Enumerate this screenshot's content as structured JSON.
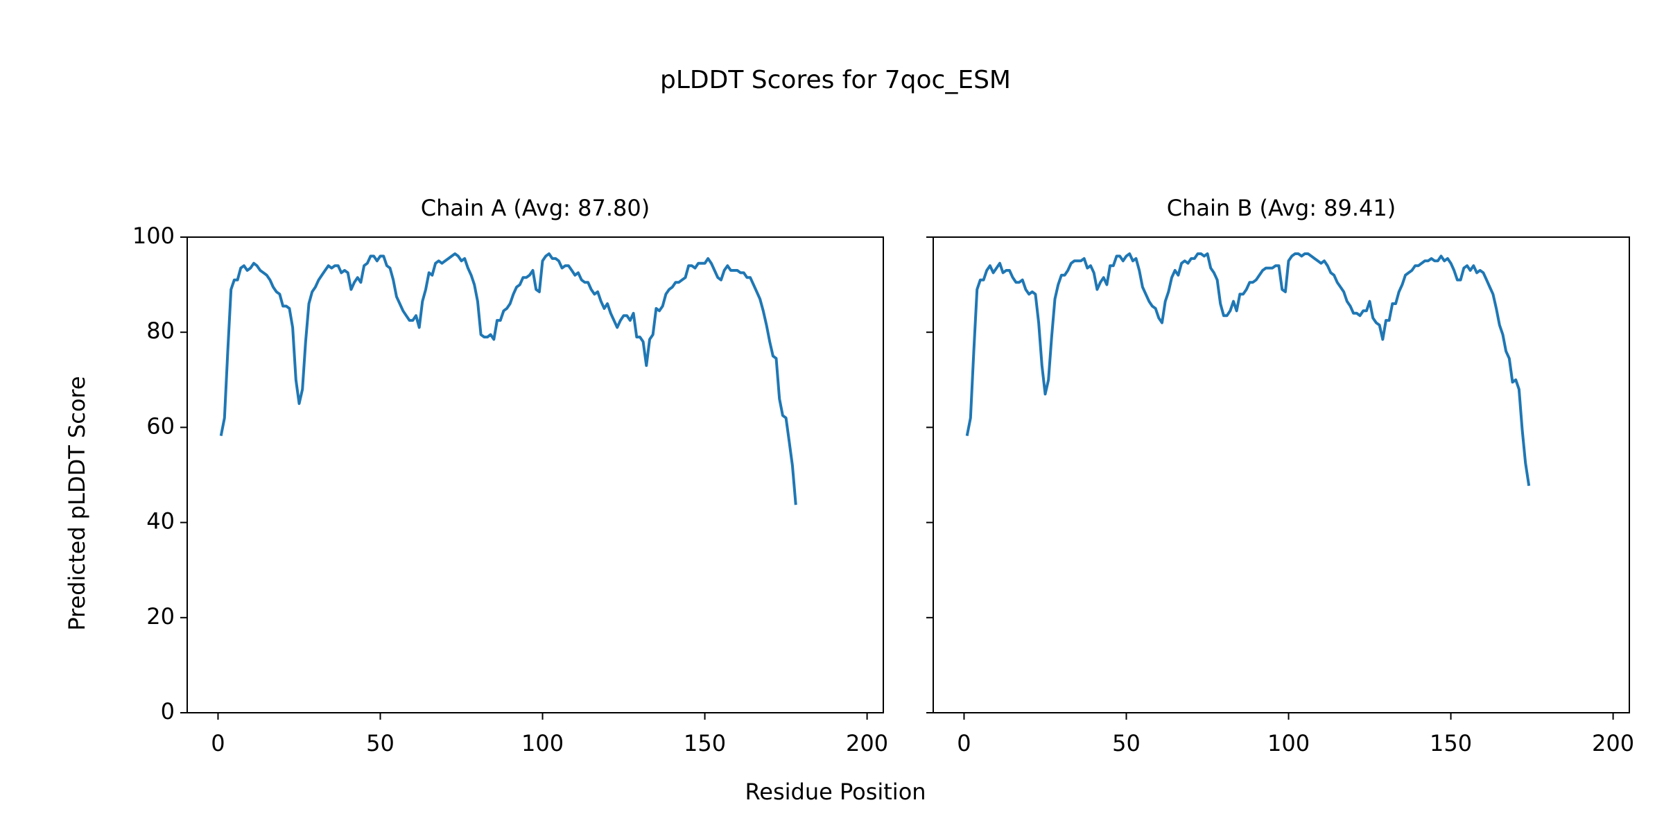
{
  "figure": {
    "suptitle": "pLDDT Scores for 7qoc_ESM",
    "xlabel": "Residue Position",
    "ylabel": "Predicted pLDDT Score"
  },
  "chart_data": [
    {
      "type": "line",
      "title": "Chain A (Avg: 87.80)",
      "xlim": [
        -9.5,
        205
      ],
      "ylim": [
        0,
        100
      ],
      "xticks": [
        0,
        50,
        100,
        150,
        200
      ],
      "yticks": [
        0,
        20,
        40,
        60,
        80,
        100
      ],
      "color": "#1f77b4",
      "grid": false,
      "points": [
        [
          1,
          58.5
        ],
        [
          2,
          62
        ],
        [
          3,
          76
        ],
        [
          4,
          89
        ],
        [
          5,
          91
        ],
        [
          6,
          91
        ],
        [
          7,
          93.5
        ],
        [
          8,
          94
        ],
        [
          9,
          93
        ],
        [
          10,
          93.5
        ],
        [
          11,
          94.5
        ],
        [
          12,
          94
        ],
        [
          13,
          93
        ],
        [
          14,
          92.5
        ],
        [
          15,
          92
        ],
        [
          16,
          91
        ],
        [
          17,
          89.5
        ],
        [
          18,
          88.5
        ],
        [
          19,
          88
        ],
        [
          20,
          85.5
        ],
        [
          21,
          85.5
        ],
        [
          22,
          85
        ],
        [
          23,
          81
        ],
        [
          24,
          70
        ],
        [
          25,
          65
        ],
        [
          26,
          68
        ],
        [
          27,
          78
        ],
        [
          28,
          86
        ],
        [
          29,
          88.5
        ],
        [
          30,
          89.5
        ],
        [
          31,
          91
        ],
        [
          32,
          92
        ],
        [
          33,
          93
        ],
        [
          34,
          94
        ],
        [
          35,
          93.5
        ],
        [
          36,
          94
        ],
        [
          37,
          94
        ],
        [
          38,
          92.5
        ],
        [
          39,
          93
        ],
        [
          40,
          92.5
        ],
        [
          41,
          89
        ],
        [
          42,
          90.5
        ],
        [
          43,
          91.5
        ],
        [
          44,
          90.5
        ],
        [
          45,
          94
        ],
        [
          46,
          94.5
        ],
        [
          47,
          96
        ],
        [
          48,
          96
        ],
        [
          49,
          95
        ],
        [
          50,
          96
        ],
        [
          51,
          96
        ],
        [
          52,
          94
        ],
        [
          53,
          93.5
        ],
        [
          54,
          91
        ],
        [
          55,
          87.5
        ],
        [
          56,
          86
        ],
        [
          57,
          84.5
        ],
        [
          58,
          83.5
        ],
        [
          59,
          82.5
        ],
        [
          60,
          82.5
        ],
        [
          61,
          83.5
        ],
        [
          62,
          81
        ],
        [
          63,
          86.5
        ],
        [
          64,
          89
        ],
        [
          65,
          92.5
        ],
        [
          66,
          92
        ],
        [
          67,
          94.5
        ],
        [
          68,
          95
        ],
        [
          69,
          94.5
        ],
        [
          70,
          95
        ],
        [
          71,
          95.5
        ],
        [
          72,
          96
        ],
        [
          73,
          96.5
        ],
        [
          74,
          96
        ],
        [
          75,
          95
        ],
        [
          76,
          95.5
        ],
        [
          77,
          93.5
        ],
        [
          78,
          92
        ],
        [
          79,
          90
        ],
        [
          80,
          86.5
        ],
        [
          81,
          79.5
        ],
        [
          82,
          79
        ],
        [
          83,
          79
        ],
        [
          84,
          79.5
        ],
        [
          85,
          78.5
        ],
        [
          86,
          82.5
        ],
        [
          87,
          82.5
        ],
        [
          88,
          84.5
        ],
        [
          89,
          85
        ],
        [
          90,
          86
        ],
        [
          91,
          88
        ],
        [
          92,
          89.5
        ],
        [
          93,
          90
        ],
        [
          94,
          91.5
        ],
        [
          95,
          91.5
        ],
        [
          96,
          92
        ],
        [
          97,
          93
        ],
        [
          98,
          89
        ],
        [
          99,
          88.5
        ],
        [
          100,
          95
        ],
        [
          101,
          96
        ],
        [
          102,
          96.5
        ],
        [
          103,
          95.5
        ],
        [
          104,
          95.5
        ],
        [
          105,
          95
        ],
        [
          106,
          93.5
        ],
        [
          107,
          94
        ],
        [
          108,
          94
        ],
        [
          109,
          93
        ],
        [
          110,
          92
        ],
        [
          111,
          92.5
        ],
        [
          112,
          91
        ],
        [
          113,
          90.5
        ],
        [
          114,
          90.5
        ],
        [
          115,
          89
        ],
        [
          116,
          88
        ],
        [
          117,
          88.5
        ],
        [
          118,
          86.5
        ],
        [
          119,
          85
        ],
        [
          120,
          86
        ],
        [
          121,
          84
        ],
        [
          122,
          82.5
        ],
        [
          123,
          81
        ],
        [
          124,
          82.5
        ],
        [
          125,
          83.5
        ],
        [
          126,
          83.5
        ],
        [
          127,
          82.5
        ],
        [
          128,
          84
        ],
        [
          129,
          79
        ],
        [
          130,
          79
        ],
        [
          131,
          78
        ],
        [
          132,
          73
        ],
        [
          133,
          78.5
        ],
        [
          134,
          79.5
        ],
        [
          135,
          85
        ],
        [
          136,
          84.5
        ],
        [
          137,
          85.5
        ],
        [
          138,
          88
        ],
        [
          139,
          89
        ],
        [
          140,
          89.5
        ],
        [
          141,
          90.5
        ],
        [
          142,
          90.5
        ],
        [
          143,
          91
        ],
        [
          144,
          91.5
        ],
        [
          145,
          94
        ],
        [
          146,
          94
        ],
        [
          147,
          93.5
        ],
        [
          148,
          94.5
        ],
        [
          149,
          94.5
        ],
        [
          150,
          94.5
        ],
        [
          151,
          95.5
        ],
        [
          152,
          94.5
        ],
        [
          153,
          93
        ],
        [
          154,
          91.5
        ],
        [
          155,
          91
        ],
        [
          156,
          93
        ],
        [
          157,
          94
        ],
        [
          158,
          93
        ],
        [
          159,
          93
        ],
        [
          160,
          93
        ],
        [
          161,
          92.5
        ],
        [
          162,
          92.5
        ],
        [
          163,
          91.5
        ],
        [
          164,
          91.5
        ],
        [
          165,
          90
        ],
        [
          166,
          88.5
        ],
        [
          167,
          87
        ],
        [
          168,
          84.5
        ],
        [
          169,
          81.5
        ],
        [
          170,
          78
        ],
        [
          171,
          75
        ],
        [
          172,
          74.5
        ],
        [
          173,
          66
        ],
        [
          174,
          62.5
        ],
        [
          175,
          62
        ],
        [
          176,
          57
        ],
        [
          177,
          52
        ],
        [
          178,
          44
        ]
      ]
    },
    {
      "type": "line",
      "title": "Chain B (Avg: 89.41)",
      "xlim": [
        -9.5,
        205
      ],
      "ylim": [
        0,
        100
      ],
      "xticks": [
        0,
        50,
        100,
        150,
        200
      ],
      "yticks": [
        0,
        20,
        40,
        60,
        80,
        100
      ],
      "color": "#1f77b4",
      "grid": false,
      "points": [
        [
          1,
          58.5
        ],
        [
          2,
          62
        ],
        [
          3,
          76
        ],
        [
          4,
          89
        ],
        [
          5,
          91
        ],
        [
          6,
          91
        ],
        [
          7,
          93
        ],
        [
          8,
          94
        ],
        [
          9,
          92.5
        ],
        [
          10,
          93.5
        ],
        [
          11,
          94.5
        ],
        [
          12,
          92.5
        ],
        [
          13,
          93
        ],
        [
          14,
          93
        ],
        [
          15,
          91.5
        ],
        [
          16,
          90.5
        ],
        [
          17,
          90.5
        ],
        [
          18,
          91
        ],
        [
          19,
          89
        ],
        [
          20,
          88
        ],
        [
          21,
          88.5
        ],
        [
          22,
          88
        ],
        [
          23,
          82
        ],
        [
          24,
          73
        ],
        [
          25,
          67
        ],
        [
          26,
          70
        ],
        [
          27,
          79
        ],
        [
          28,
          87
        ],
        [
          29,
          90
        ],
        [
          30,
          92
        ],
        [
          31,
          92
        ],
        [
          32,
          93
        ],
        [
          33,
          94.5
        ],
        [
          34,
          95
        ],
        [
          35,
          95
        ],
        [
          36,
          95
        ],
        [
          37,
          95.5
        ],
        [
          38,
          93.5
        ],
        [
          39,
          94
        ],
        [
          40,
          92.5
        ],
        [
          41,
          89
        ],
        [
          42,
          90.5
        ],
        [
          43,
          91.5
        ],
        [
          44,
          90
        ],
        [
          45,
          94
        ],
        [
          46,
          94
        ],
        [
          47,
          96
        ],
        [
          48,
          96
        ],
        [
          49,
          95
        ],
        [
          50,
          96
        ],
        [
          51,
          96.5
        ],
        [
          52,
          95
        ],
        [
          53,
          95.5
        ],
        [
          54,
          93
        ],
        [
          55,
          89.5
        ],
        [
          56,
          88
        ],
        [
          57,
          86.5
        ],
        [
          58,
          85.5
        ],
        [
          59,
          85
        ],
        [
          60,
          83
        ],
        [
          61,
          82
        ],
        [
          62,
          86.5
        ],
        [
          63,
          88.5
        ],
        [
          64,
          91.5
        ],
        [
          65,
          93
        ],
        [
          66,
          92
        ],
        [
          67,
          94.5
        ],
        [
          68,
          95
        ],
        [
          69,
          94.5
        ],
        [
          70,
          95.5
        ],
        [
          71,
          95.5
        ],
        [
          72,
          96.5
        ],
        [
          73,
          96.5
        ],
        [
          74,
          96
        ],
        [
          75,
          96.5
        ],
        [
          76,
          93.5
        ],
        [
          77,
          92.5
        ],
        [
          78,
          91
        ],
        [
          79,
          86
        ],
        [
          80,
          83.5
        ],
        [
          81,
          83.5
        ],
        [
          82,
          84.5
        ],
        [
          83,
          86.5
        ],
        [
          84,
          84.5
        ],
        [
          85,
          88
        ],
        [
          86,
          88
        ],
        [
          87,
          89
        ],
        [
          88,
          90.5
        ],
        [
          89,
          90.5
        ],
        [
          90,
          91
        ],
        [
          91,
          92
        ],
        [
          92,
          93
        ],
        [
          93,
          93.5
        ],
        [
          94,
          93.5
        ],
        [
          95,
          93.5
        ],
        [
          96,
          94
        ],
        [
          97,
          94
        ],
        [
          98,
          89
        ],
        [
          99,
          88.5
        ],
        [
          100,
          95
        ],
        [
          101,
          96
        ],
        [
          102,
          96.5
        ],
        [
          103,
          96.5
        ],
        [
          104,
          96
        ],
        [
          105,
          96.5
        ],
        [
          106,
          96.5
        ],
        [
          107,
          96
        ],
        [
          108,
          95.5
        ],
        [
          109,
          95
        ],
        [
          110,
          94.5
        ],
        [
          111,
          95
        ],
        [
          112,
          94
        ],
        [
          113,
          92.5
        ],
        [
          114,
          92
        ],
        [
          115,
          90.5
        ],
        [
          116,
          89.5
        ],
        [
          117,
          88.5
        ],
        [
          118,
          86.5
        ],
        [
          119,
          85.5
        ],
        [
          120,
          84
        ],
        [
          121,
          84
        ],
        [
          122,
          83.5
        ],
        [
          123,
          84.5
        ],
        [
          124,
          84.5
        ],
        [
          125,
          86.5
        ],
        [
          126,
          83
        ],
        [
          127,
          82
        ],
        [
          128,
          81.5
        ],
        [
          129,
          78.5
        ],
        [
          130,
          82.5
        ],
        [
          131,
          82.5
        ],
        [
          132,
          86
        ],
        [
          133,
          86
        ],
        [
          134,
          88.5
        ],
        [
          135,
          90
        ],
        [
          136,
          92
        ],
        [
          137,
          92.5
        ],
        [
          138,
          93
        ],
        [
          139,
          94
        ],
        [
          140,
          94
        ],
        [
          141,
          94.5
        ],
        [
          142,
          95
        ],
        [
          143,
          95
        ],
        [
          144,
          95.5
        ],
        [
          145,
          95
        ],
        [
          146,
          95
        ],
        [
          147,
          96
        ],
        [
          148,
          95
        ],
        [
          149,
          95.5
        ],
        [
          150,
          94.5
        ],
        [
          151,
          93
        ],
        [
          152,
          91
        ],
        [
          153,
          91
        ],
        [
          154,
          93.5
        ],
        [
          155,
          94
        ],
        [
          156,
          93
        ],
        [
          157,
          94
        ],
        [
          158,
          92.5
        ],
        [
          159,
          93
        ],
        [
          160,
          92.5
        ],
        [
          161,
          91
        ],
        [
          162,
          89.5
        ],
        [
          163,
          88
        ],
        [
          164,
          85
        ],
        [
          165,
          81.5
        ],
        [
          166,
          79.5
        ],
        [
          167,
          76
        ],
        [
          168,
          74.5
        ],
        [
          169,
          69.5
        ],
        [
          170,
          70
        ],
        [
          171,
          68
        ],
        [
          172,
          59.5
        ],
        [
          173,
          52.5
        ],
        [
          174,
          48
        ]
      ]
    }
  ]
}
